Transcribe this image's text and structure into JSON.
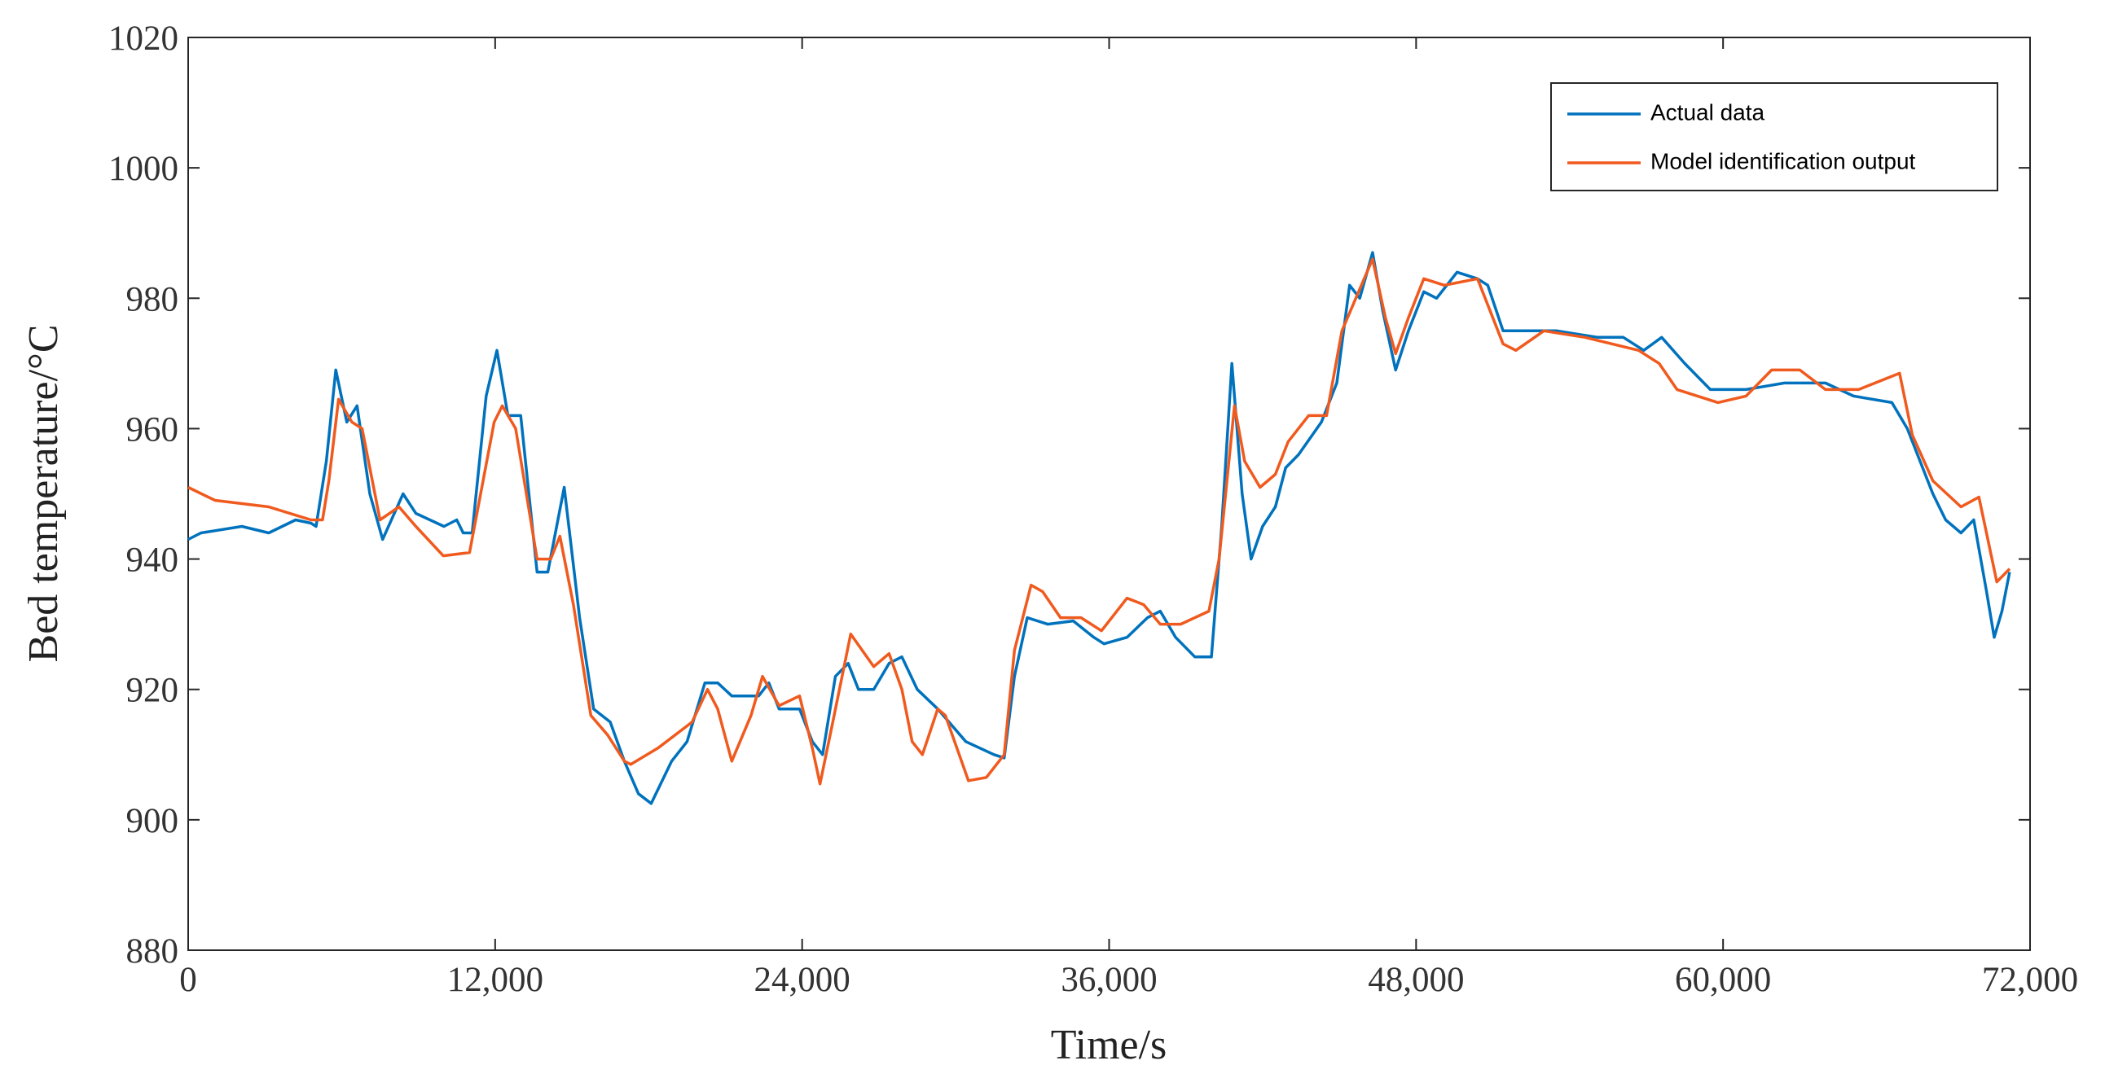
{
  "chart_data": {
    "type": "line",
    "xlabel": "Time/s",
    "ylabel": "Bed temperature/°C",
    "xlim": [
      0,
      72000
    ],
    "ylim": [
      880,
      1020
    ],
    "xticks": [
      0,
      {
        "value": 12000,
        "label": "12,000"
      },
      {
        "value": 24000,
        "label": "24,000"
      },
      {
        "value": 36000,
        "label": "36,000"
      },
      {
        "value": 48000,
        "label": "48,000"
      },
      {
        "value": 60000,
        "label": "60,000"
      },
      {
        "value": 72000,
        "label": "72,000"
      }
    ],
    "yticks": [
      880,
      900,
      920,
      940,
      960,
      980,
      1000,
      1020
    ],
    "grid": false,
    "legend": "upper right",
    "series": [
      {
        "name": "Actual data",
        "color": "#0072bd",
        "x": [
          0,
          500,
          2100,
          3150,
          4200,
          4800,
          5000,
          5400,
          5770,
          6200,
          6600,
          7100,
          7600,
          8400,
          8900,
          10000,
          10500,
          10750,
          11100,
          11650,
          12070,
          12500,
          13000,
          13640,
          14060,
          14700,
          15300,
          15850,
          16500,
          17050,
          17600,
          18100,
          18900,
          19500,
          20200,
          20700,
          21250,
          22300,
          22700,
          23100,
          23900,
          24400,
          24800,
          25300,
          25800,
          26200,
          26800,
          27400,
          27900,
          28500,
          29300,
          30400,
          31500,
          31900,
          32300,
          32800,
          33600,
          34600,
          35400,
          35800,
          36700,
          37500,
          38000,
          38600,
          39350,
          40000,
          40400,
          40800,
          41200,
          41550,
          42000,
          42500,
          42900,
          43400,
          44300,
          44900,
          45400,
          45800,
          46300,
          46700,
          47200,
          47700,
          48300,
          48800,
          49600,
          50400,
          50800,
          51400,
          52200,
          53500,
          55100,
          56100,
          56900,
          57600,
          58500,
          59500,
          60900,
          62400,
          64000,
          65100,
          66600,
          67200,
          68200,
          68700,
          69300,
          69800,
          70300,
          70600,
          70900,
          71200
        ],
        "values": [
          943,
          944,
          945,
          944,
          946,
          945.5,
          945,
          955,
          969,
          961,
          963.5,
          950,
          943,
          950,
          947,
          945,
          946,
          944,
          944,
          965,
          972,
          962,
          962,
          938,
          938,
          951,
          931,
          917,
          915,
          909,
          904,
          902.5,
          909,
          912,
          921,
          921,
          919,
          919,
          921,
          917,
          917,
          912,
          910,
          922,
          924,
          920,
          920,
          924,
          925,
          920,
          917,
          912,
          910,
          909.5,
          922,
          931,
          930,
          930.5,
          928,
          927,
          928,
          931,
          932,
          928,
          925,
          925,
          945,
          970,
          950,
          940,
          945,
          948,
          954,
          956,
          961,
          967,
          982,
          980,
          987,
          978,
          969,
          975,
          981,
          980,
          984,
          983,
          982,
          975,
          975,
          975,
          974,
          974,
          972,
          974,
          970,
          966,
          966,
          967,
          967,
          965,
          964,
          960,
          950,
          946,
          944,
          946,
          935,
          928,
          932,
          938
        ]
      },
      {
        "name": "Model identification output",
        "color": "#f05a1e",
        "x": [
          0,
          1050,
          3150,
          4800,
          5250,
          5500,
          5880,
          6400,
          6800,
          7500,
          8240,
          8900,
          9970,
          11000,
          11960,
          12280,
          12800,
          13640,
          14170,
          14530,
          15060,
          15740,
          16400,
          17050,
          17300,
          18360,
          19700,
          20300,
          20700,
          21250,
          22000,
          22450,
          23100,
          23900,
          24400,
          24700,
          25200,
          25900,
          26800,
          27400,
          27900,
          28300,
          28700,
          29300,
          29600,
          30500,
          31200,
          31900,
          32300,
          32950,
          33400,
          34100,
          34900,
          35700,
          36700,
          37350,
          38000,
          38800,
          39900,
          40300,
          40900,
          41300,
          41900,
          42500,
          43000,
          43800,
          44500,
          45100,
          46300,
          46800,
          47200,
          47700,
          48300,
          49100,
          50400,
          50900,
          51400,
          51900,
          53000,
          54600,
          56700,
          57500,
          58200,
          59800,
          60900,
          61900,
          63000,
          64000,
          65300,
          66900,
          67400,
          68200,
          69300,
          70000,
          70700,
          71200
        ],
        "values": [
          951,
          949,
          948,
          946,
          946,
          952,
          964.5,
          961,
          960,
          946,
          948,
          945,
          940.5,
          941,
          961,
          963.5,
          960,
          940,
          940,
          943.5,
          933,
          916,
          913,
          909,
          908.5,
          911,
          915,
          920,
          917,
          909,
          916,
          922,
          917.5,
          919,
          911,
          905.5,
          915,
          928.5,
          923.5,
          925.5,
          920,
          912,
          910,
          917,
          916,
          906,
          906.5,
          910,
          926,
          936,
          935,
          931,
          931,
          929,
          934,
          933,
          930,
          930,
          932,
          940,
          963.5,
          955,
          951,
          953,
          958,
          962,
          962,
          975,
          986,
          977,
          971.5,
          977,
          983,
          982,
          983,
          978,
          973,
          972,
          975,
          974,
          972,
          970,
          966,
          964,
          965,
          969,
          969,
          966,
          966,
          968.5,
          959,
          952,
          948,
          949.5,
          936.5,
          938.5
        ]
      }
    ]
  }
}
